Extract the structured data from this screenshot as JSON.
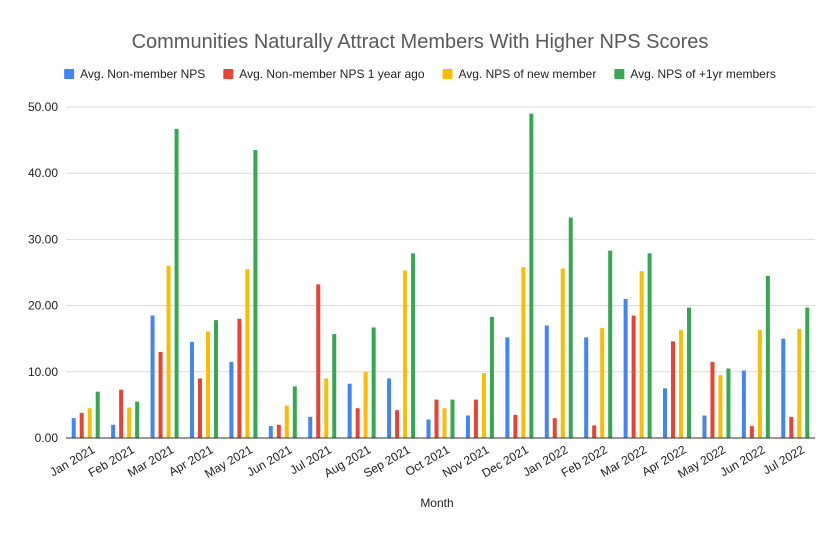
{
  "chart_data": {
    "type": "bar",
    "title": "Communities Naturally Attract Members With Higher NPS Scores",
    "xlabel": "Month",
    "ylabel": "",
    "ylim": [
      0,
      50
    ],
    "yticks": [
      "0.00",
      "10.00",
      "20.00",
      "30.00",
      "40.00",
      "50.00"
    ],
    "grid": true,
    "legend_position": "top",
    "categories": [
      "Jan 2021",
      "Feb 2021",
      "Mar 2021",
      "Apr 2021",
      "May 2021",
      "Jun 2021",
      "Jul 2021",
      "Aug 2021",
      "Sep 2021",
      "Oct 2021",
      "Nov 2021",
      "Dec 2021",
      "Jan 2022",
      "Feb 2022",
      "Mar 2022",
      "Apr 2022",
      "May 2022",
      "Jun 2022",
      "Jul 2022"
    ],
    "series": [
      {
        "name": "Avg. Non-member NPS",
        "color": "#4285f4",
        "values": [
          3.0,
          2.0,
          18.5,
          14.5,
          11.5,
          1.8,
          3.2,
          8.2,
          9.0,
          2.8,
          3.4,
          15.2,
          17.0,
          15.2,
          21.0,
          7.5,
          3.4,
          10.2,
          15.0
        ]
      },
      {
        "name": "Avg. Non-member NPS 1 year ago",
        "color": "#ea4335",
        "values": [
          3.8,
          7.3,
          13.0,
          9.0,
          18.0,
          2.0,
          23.2,
          4.5,
          4.2,
          5.8,
          5.8,
          3.5,
          3.0,
          1.9,
          18.5,
          14.6,
          11.5,
          1.8,
          3.2
        ]
      },
      {
        "name": "Avg. NPS of new member",
        "color": "#fbbc04",
        "values": [
          4.5,
          4.6,
          26.0,
          16.1,
          25.5,
          4.9,
          9.0,
          10.0,
          25.3,
          4.5,
          9.8,
          25.8,
          25.6,
          16.6,
          25.2,
          16.3,
          9.5,
          16.3,
          16.5
        ]
      },
      {
        "name": "Avg. NPS of +1yr members",
        "color": "#34a853",
        "values": [
          7.0,
          5.5,
          46.7,
          17.8,
          43.5,
          7.8,
          15.7,
          16.7,
          27.9,
          5.8,
          18.3,
          49.0,
          33.3,
          28.3,
          27.9,
          19.7,
          10.5,
          24.5,
          19.7
        ]
      }
    ]
  }
}
